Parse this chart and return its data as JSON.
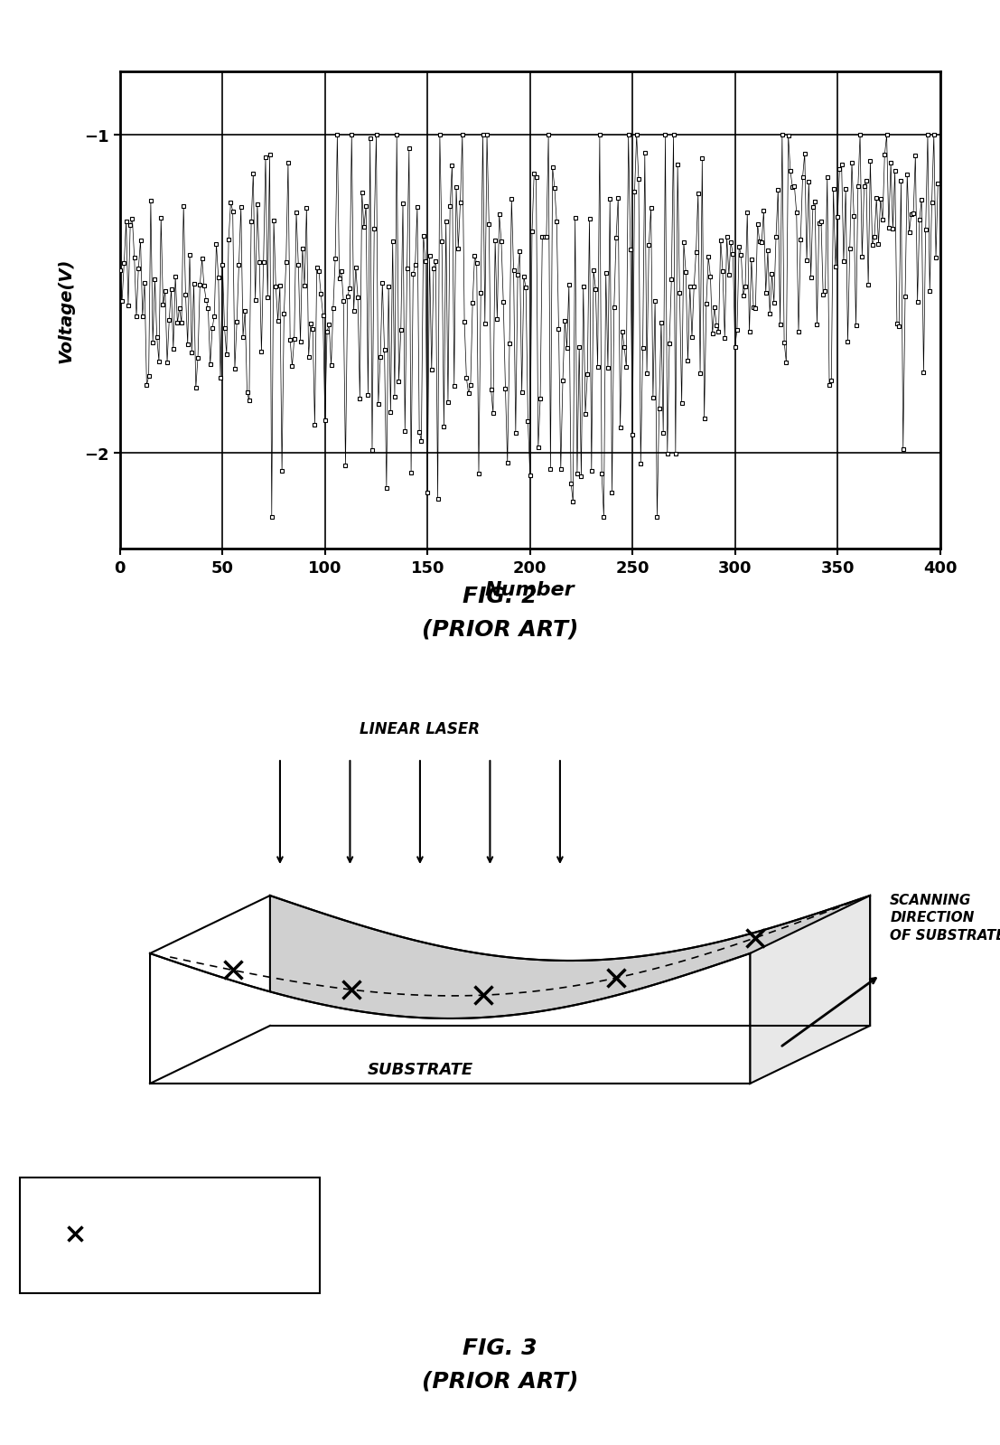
{
  "fig2_title": "FIG. 2",
  "fig2_subtitle": "(PRIOR ART)",
  "fig3_title": "FIG. 3",
  "fig3_subtitle": "(PRIOR ART)",
  "xlabel": "Number",
  "ylabel": "Voltage(V)",
  "xlim": [
    0,
    400
  ],
  "ylim": [
    -2.3,
    -0.8
  ],
  "xticks": [
    0,
    50,
    100,
    150,
    200,
    250,
    300,
    350,
    400
  ],
  "yticks": [
    -2,
    -1
  ],
  "background_color": "#ffffff",
  "line_color": "#000000",
  "marker_color": "#000000"
}
